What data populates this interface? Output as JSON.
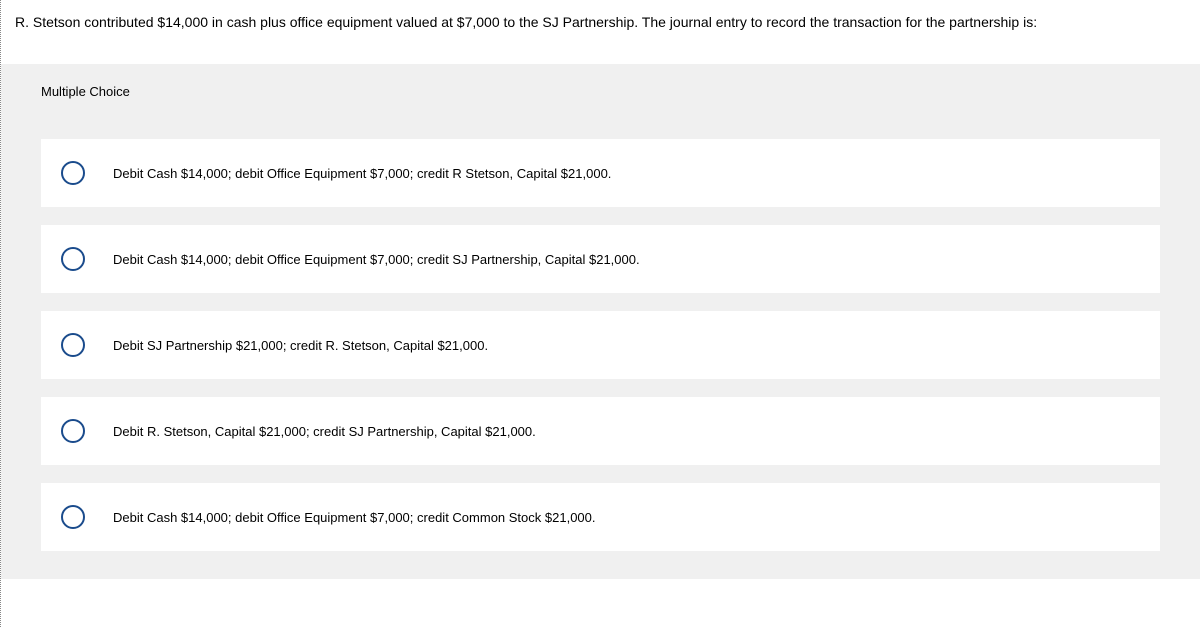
{
  "question": {
    "text": "R. Stetson contributed $14,000 in cash plus office equipment valued at $7,000 to the SJ Partnership. The journal entry to record the transaction for the partnership is:"
  },
  "mc_label": "Multiple Choice",
  "options": [
    {
      "text": "Debit Cash $14,000; debit Office Equipment $7,000; credit R Stetson, Capital $21,000."
    },
    {
      "text": "Debit Cash $14,000; debit Office Equipment $7,000; credit SJ Partnership, Capital $21,000."
    },
    {
      "text": "Debit SJ Partnership $21,000; credit R. Stetson, Capital $21,000."
    },
    {
      "text": "Debit R. Stetson, Capital $21,000; credit SJ Partnership, Capital $21,000."
    },
    {
      "text": "Debit Cash $14,000; debit Office Equipment $7,000; credit Common Stock $21,000."
    }
  ],
  "styling": {
    "radio_border_color": "#1a4b8c",
    "question_fontsize": 14,
    "option_fontsize": 13,
    "mc_label_fontsize": 13,
    "background": "#f0f0f0",
    "option_bg": "#ffffff"
  }
}
